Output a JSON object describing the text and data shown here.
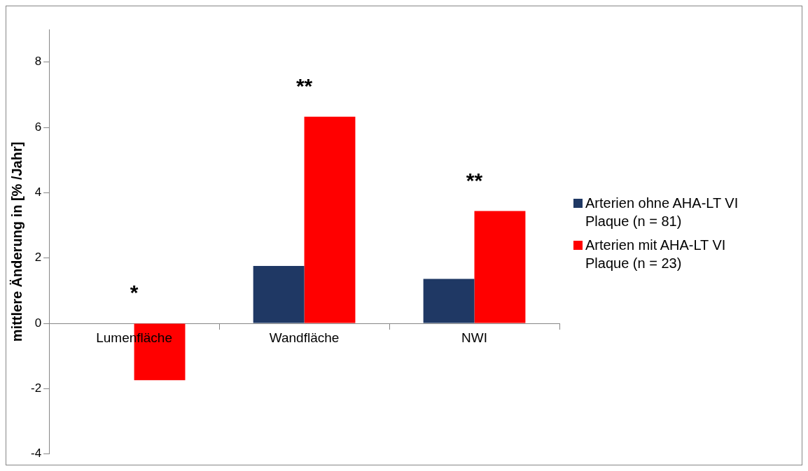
{
  "chart_data": {
    "type": "bar",
    "ylabel": "mittlere Änderung in [% /Jahr]",
    "categories": [
      "Lumenfläche",
      "Wandfläche",
      "NWI"
    ],
    "series": [
      {
        "name": "Arterien ohne AHA-LT VI Plaque (n = 81)",
        "color": "#1f3864",
        "values": [
          0,
          1.76,
          1.36
        ]
      },
      {
        "name": "Arterien mit AHA-LT VI Plaque (n = 23)",
        "color": "#ff0000",
        "values": [
          -1.74,
          6.33,
          3.44
        ]
      }
    ],
    "ylim": [
      -4,
      9
    ],
    "yticks": [
      -4,
      -2,
      0,
      2,
      4,
      6,
      8
    ],
    "grid": false,
    "legend": "right",
    "annotations": [
      "*",
      "**",
      "**"
    ]
  }
}
